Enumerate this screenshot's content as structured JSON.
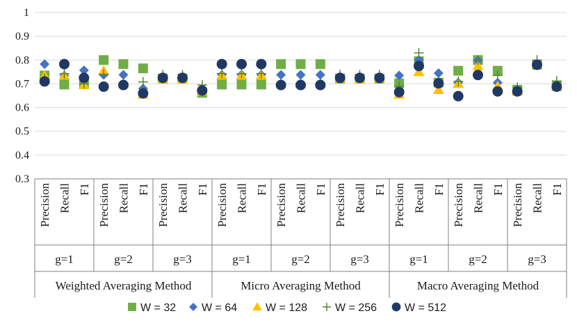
{
  "chart_data": {
    "type": "scatter",
    "title": "",
    "xlabel": "",
    "ylabel": "",
    "ylim": [
      0.3,
      1
    ],
    "yticks": [
      "0.3",
      "0.4",
      "0.5",
      "0.6",
      "0.7",
      "0.8",
      "0.9",
      "1"
    ],
    "grid": "horizontal",
    "legend_position": "bottom",
    "methods": [
      "Weighted Averaging Method",
      "Micro Averaging Method",
      "Macro Averaging Method"
    ],
    "groups": [
      "g=1",
      "g=2",
      "g=3"
    ],
    "metrics": [
      "Precision",
      "Recall",
      "F1"
    ],
    "series": [
      {
        "name": "W = 32",
        "marker": "square",
        "color": "#70ad47",
        "values": [
          0.735,
          0.697,
          0.705,
          0.8,
          0.783,
          0.765,
          0.722,
          0.722,
          0.662,
          0.697,
          0.697,
          0.697,
          0.783,
          0.783,
          0.783,
          0.722,
          0.722,
          0.722,
          0.702,
          0.795,
          0.705,
          0.755,
          0.8,
          0.755,
          0.675,
          0.78,
          0.69
        ]
      },
      {
        "name": "W = 64",
        "marker": "diamond",
        "color": "#4472c4",
        "values": [
          0.783,
          0.735,
          0.757,
          0.738,
          0.738,
          0.68,
          0.722,
          0.725,
          0.67,
          0.738,
          0.738,
          0.738,
          0.738,
          0.738,
          0.738,
          0.728,
          0.725,
          0.728,
          0.735,
          0.8,
          0.745,
          0.705,
          0.798,
          0.705,
          0.675,
          0.78,
          0.69
        ]
      },
      {
        "name": "W = 128",
        "marker": "triangle",
        "color": "#ffc000",
        "values": [
          0.735,
          0.735,
          0.695,
          0.755,
          0.7,
          0.655,
          0.718,
          0.718,
          0.668,
          0.735,
          0.735,
          0.735,
          0.7,
          0.7,
          0.7,
          0.722,
          0.718,
          0.722,
          0.655,
          0.75,
          0.675,
          0.7,
          0.775,
          0.69,
          0.668,
          0.782,
          0.69
        ]
      },
      {
        "name": "W = 256",
        "marker": "plus",
        "color": "#548235",
        "values": [
          0.722,
          0.743,
          0.7,
          0.74,
          0.702,
          0.708,
          0.738,
          0.738,
          0.695,
          0.743,
          0.743,
          0.743,
          0.702,
          0.702,
          0.702,
          0.738,
          0.738,
          0.738,
          0.69,
          0.83,
          0.705,
          0.71,
          0.8,
          0.735,
          0.685,
          0.8,
          0.712
        ]
      },
      {
        "name": "W = 512",
        "marker": "circle",
        "color": "#203864",
        "values": [
          0.71,
          0.783,
          0.725,
          0.688,
          0.695,
          0.66,
          0.725,
          0.725,
          0.672,
          0.783,
          0.783,
          0.783,
          0.695,
          0.695,
          0.695,
          0.725,
          0.725,
          0.725,
          0.665,
          0.775,
          0.702,
          0.648,
          0.737,
          0.668,
          0.668,
          0.78,
          0.688
        ]
      }
    ]
  }
}
